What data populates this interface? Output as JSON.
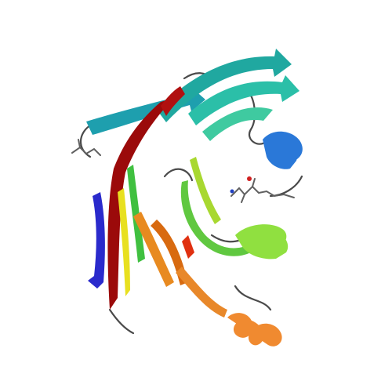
{
  "image": {
    "subject": "protein-ribbon-structure",
    "background": "#ffffff",
    "palette": {
      "blue": "#2a2acc",
      "dark_red": "#9b0a0a",
      "red": "#e03010",
      "yellow": "#e8e020",
      "teal": "#20a0a0",
      "cyan_teal": "#30c0b0",
      "azure": "#2a78d8",
      "green": "#40c040",
      "lime": "#90e040",
      "orange": "#e88a20",
      "orange_dark": "#d86a10",
      "coil": "#505050",
      "ligand": "#606060"
    }
  }
}
